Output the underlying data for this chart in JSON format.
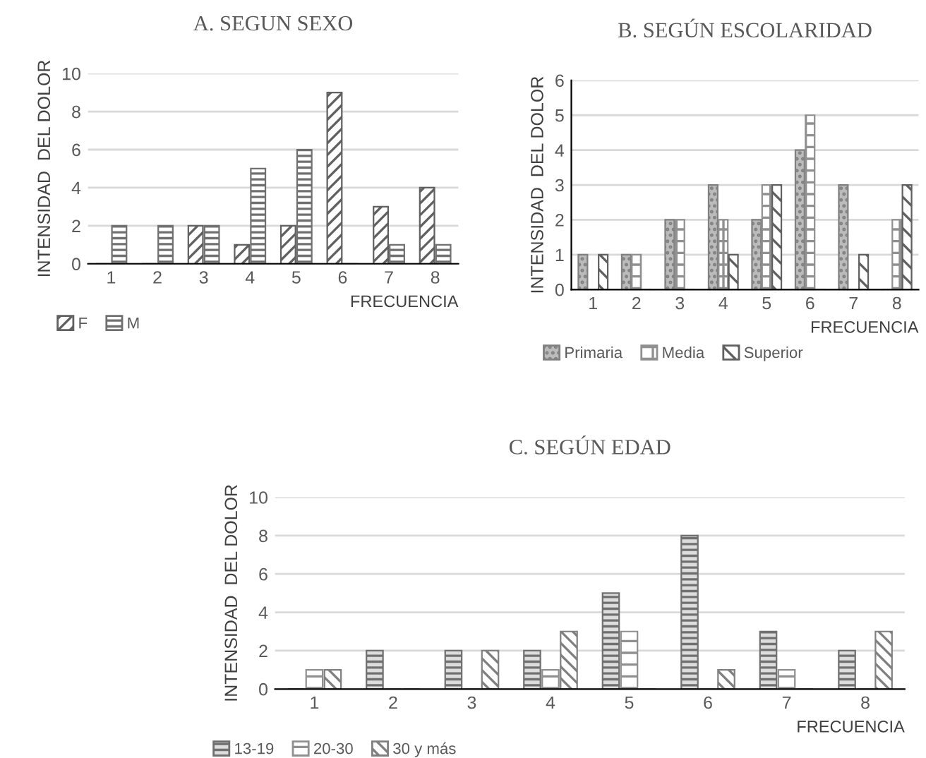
{
  "chart_data": [
    {
      "type": "bar",
      "title": "A. SEGUN SEXO",
      "xlabel": "FRECUENCIA",
      "ylabel": "INTENSIDAD  DEL DOLOR",
      "categories": [
        "1",
        "2",
        "3",
        "4",
        "5",
        "6",
        "7",
        "8"
      ],
      "ylim": [
        0,
        10
      ],
      "yticks": [
        0,
        2,
        4,
        6,
        8,
        10
      ],
      "grid": "y",
      "legend": "bottom",
      "series": [
        {
          "name": "F",
          "color": "#606060",
          "values": [
            0,
            0,
            2,
            1,
            2,
            9,
            3,
            4
          ]
        },
        {
          "name": "M",
          "color": "#707070",
          "values": [
            2,
            2,
            2,
            5,
            6,
            0,
            1,
            1
          ]
        }
      ]
    },
    {
      "type": "bar",
      "title": "B. SEGÚN ESCOLARIDAD",
      "xlabel": "FRECUENCIA",
      "ylabel": "INTENSIDAD  DEL DOLOR",
      "categories": [
        "1",
        "2",
        "3",
        "4",
        "5",
        "6",
        "7",
        "8"
      ],
      "ylim": [
        0,
        6
      ],
      "yticks": [
        0,
        1,
        2,
        3,
        4,
        5,
        6
      ],
      "grid": "y",
      "legend": "bottom",
      "series": [
        {
          "name": "Primaria",
          "color": "#808080",
          "values": [
            1,
            1,
            2,
            3,
            2,
            4,
            3,
            0
          ]
        },
        {
          "name": "Media",
          "color": "#909090",
          "values": [
            0,
            1,
            2,
            2,
            3,
            5,
            0,
            2
          ]
        },
        {
          "name": "Superior",
          "color": "#606060",
          "values": [
            1,
            0,
            0,
            1,
            3,
            0,
            1,
            3
          ]
        }
      ]
    },
    {
      "type": "bar",
      "title": "C. SEGÚN EDAD",
      "xlabel": "FRECUENCIA",
      "ylabel": "INTENSIDAD  DEL DOLOR",
      "categories": [
        "1",
        "2",
        "3",
        "4",
        "5",
        "6",
        "7",
        "8"
      ],
      "ylim": [
        0,
        10
      ],
      "yticks": [
        0,
        2,
        4,
        6,
        8,
        10
      ],
      "grid": "y",
      "legend": "bottom",
      "series": [
        {
          "name": "13-19",
          "color": "#707070",
          "values": [
            0,
            2,
            2,
            2,
            5,
            8,
            3,
            2
          ]
        },
        {
          "name": "20-30",
          "color": "#909090",
          "values": [
            1,
            0,
            0,
            1,
            3,
            0,
            1,
            0
          ]
        },
        {
          "name": "30 y más",
          "color": "#808080",
          "values": [
            1,
            0,
            2,
            3,
            0,
            1,
            0,
            3
          ]
        }
      ]
    }
  ]
}
